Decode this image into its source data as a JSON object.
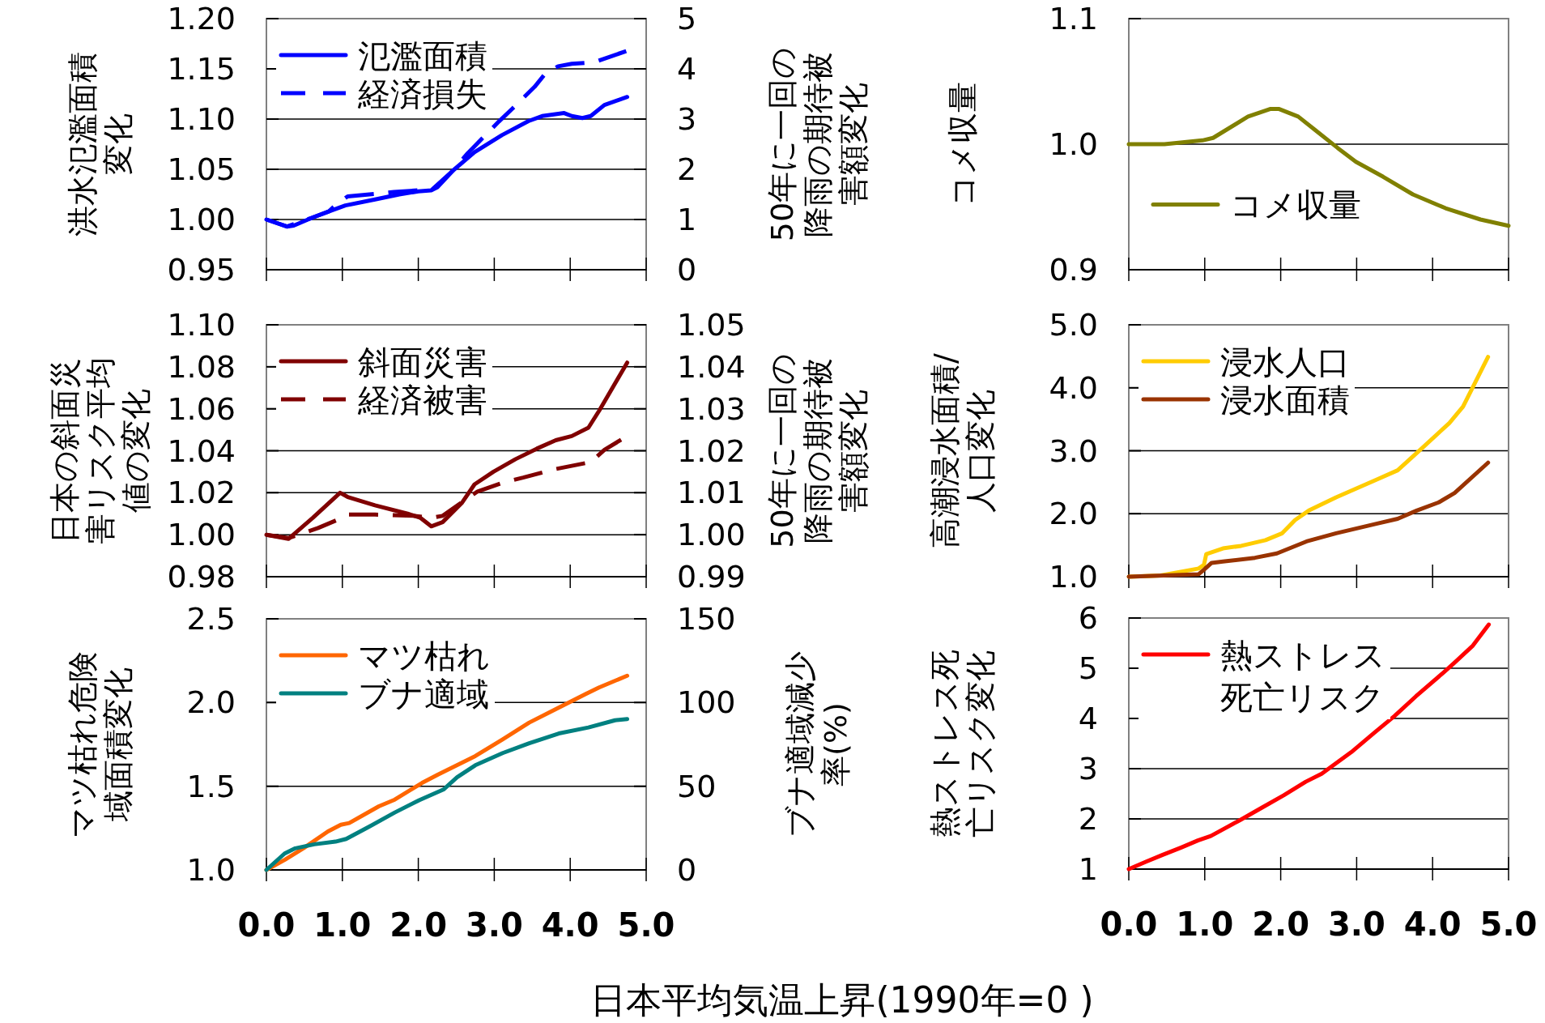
{
  "chart_data": [
    {
      "type": "line",
      "ylabel": "洪水氾濫面積変化",
      "y2label": "50年に一回の降雨の期待被害額変化",
      "xlim": [
        0,
        5
      ],
      "xticks": [
        0,
        1,
        2,
        3,
        4,
        5
      ],
      "ylim": [
        0.95,
        1.2
      ],
      "yticks": [
        0.95,
        {
          "value": 1,
          "label": "1.00"
        },
        1.05,
        {
          "value": 1.1,
          "label": "1.10"
        },
        1.15,
        {
          "value": 1.2,
          "label": "1.20"
        }
      ],
      "y2lim": [
        0,
        5
      ],
      "y2ticks": [
        0,
        1,
        2,
        3,
        4,
        5
      ],
      "grid": "y",
      "legend": "top left",
      "tick_labels": "y",
      "series": [
        {
          "name": "氾濫面積",
          "color": "#0000ff",
          "line_style": "solid",
          "x": [
            0,
            0.27,
            0.36,
            0.61,
            0.82,
            1.04,
            1.43,
            1.75,
            2.0,
            2.17,
            2.25,
            2.46,
            2.74,
            3.1,
            3.45,
            3.63,
            3.92,
            4.02,
            4.16,
            4.27,
            4.45,
            4.75
          ],
          "values": [
            1.0,
            0.993,
            0.994,
            1.002,
            1.008,
            1.014,
            1.02,
            1.025,
            1.028,
            1.029,
            1.032,
            1.049,
            1.067,
            1.084,
            1.098,
            1.103,
            1.106,
            1.103,
            1.101,
            1.103,
            1.114,
            1.122
          ]
        },
        {
          "name": "経済損失",
          "color": "#0000ff",
          "line_style": "dashed",
          "axis": "y2",
          "x": [
            0,
            0.27,
            0.61,
            0.82,
            0.93,
            1.07,
            1.43,
            1.68,
            2.0,
            2.17,
            2.46,
            2.65,
            3.06,
            3.24,
            3.53,
            3.68,
            3.84,
            4.02,
            4.31,
            4.75
          ],
          "values": [
            1.0,
            0.86,
            1.04,
            1.16,
            1.31,
            1.46,
            1.51,
            1.55,
            1.58,
            1.58,
            1.98,
            2.32,
            2.95,
            3.21,
            3.64,
            3.92,
            4.05,
            4.1,
            4.13,
            4.36
          ]
        }
      ]
    },
    {
      "type": "line",
      "ylabel": "コメ収量",
      "xlim": [
        0,
        5
      ],
      "xticks": [
        0,
        1,
        2,
        3,
        4,
        5
      ],
      "ylim": [
        0.9,
        1.1
      ],
      "yticks": [
        0.9,
        {
          "value": 1,
          "label": "1.0"
        },
        1.1
      ],
      "grid": "y",
      "legend": "bottom left",
      "tick_labels": "y",
      "series": [
        {
          "name": "コメ収量",
          "color": "#808000",
          "line_style": "solid",
          "x": [
            0,
            0.47,
            0.97,
            1.11,
            1.57,
            1.86,
            1.98,
            2.23,
            2.46,
            2.75,
            2.99,
            3.35,
            3.74,
            4.17,
            4.63,
            5.0
          ],
          "values": [
            1.0,
            1.0,
            1.003,
            1.005,
            1.022,
            1.028,
            1.028,
            1.022,
            1.011,
            0.997,
            0.986,
            0.974,
            0.96,
            0.949,
            0.94,
            0.935
          ]
        }
      ]
    },
    {
      "type": "line",
      "ylabel": "日本の斜面災害リスク平均値の変化",
      "y2label": "50年に一回の降雨の期待被害額変化",
      "xlim": [
        0,
        5
      ],
      "xticks": [
        0,
        1,
        2,
        3,
        4,
        5
      ],
      "ylim": [
        0.98,
        1.1
      ],
      "yticks": [
        0.98,
        {
          "value": 1,
          "label": "1.00"
        },
        1.02,
        1.04,
        1.06,
        1.08,
        {
          "value": 1.1,
          "label": "1.10"
        }
      ],
      "y2lim": [
        0.99,
        1.05
      ],
      "y2ticks": [
        0.99,
        {
          "value": 1,
          "label": "1.00"
        },
        1.01,
        1.02,
        1.03,
        1.04,
        1.05
      ],
      "grid": "y",
      "legend": "top left",
      "tick_labels": "y",
      "series": [
        {
          "name": "斜面災害",
          "color": "#800000",
          "line_style": "solid",
          "x": [
            0,
            0.29,
            0.61,
            0.97,
            1.07,
            1.43,
            1.86,
            2.03,
            2.17,
            2.32,
            2.57,
            2.74,
            2.99,
            3.28,
            3.56,
            3.81,
            4.02,
            4.24,
            4.38,
            4.75
          ],
          "values": [
            1.0,
            0.998,
            1.008,
            1.02,
            1.018,
            1.014,
            1.01,
            1.008,
            1.004,
            1.006,
            1.015,
            1.024,
            1.03,
            1.036,
            1.041,
            1.045,
            1.047,
            1.051,
            1.059,
            1.082
          ]
        },
        {
          "name": "経済被害",
          "color": "#800000",
          "line_style": "dashed",
          "axis": "y2",
          "x": [
            0,
            0.29,
            0.68,
            0.97,
            1.07,
            1.43,
            1.93,
            2.17,
            2.32,
            2.57,
            2.78,
            3.13,
            3.38,
            3.77,
            4.02,
            4.27,
            4.45,
            4.73
          ],
          "values": [
            1.0,
            0.9992,
            1.0016,
            1.0038,
            1.0048,
            1.0048,
            1.0045,
            1.004,
            1.0045,
            1.0077,
            1.0103,
            1.0125,
            1.0136,
            1.0155,
            1.0164,
            1.0173,
            1.0202,
            1.0233
          ]
        }
      ]
    },
    {
      "type": "line",
      "ylabel": "高潮浸水面積/人口変化",
      "xlim": [
        0,
        5
      ],
      "xticks": [
        0,
        1,
        2,
        3,
        4,
        5
      ],
      "ylim": [
        1,
        5
      ],
      "yticks": [
        {
          "value": 1,
          "label": "1.0"
        },
        {
          "value": 2,
          "label": "2.0"
        },
        {
          "value": 3,
          "label": "3.0"
        },
        {
          "value": 4,
          "label": "4.0"
        },
        {
          "value": 5,
          "label": "5.0"
        }
      ],
      "grid": "y",
      "legend": "top left",
      "tick_labels": "y",
      "series": [
        {
          "name": "浸水人口",
          "color": "#ffcc00",
          "line_style": "solid",
          "x": [
            0,
            0.42,
            0.92,
            0.99,
            1.02,
            1.24,
            1.48,
            1.8,
            2.02,
            2.19,
            2.37,
            2.73,
            3.26,
            3.54,
            3.86,
            4.22,
            4.4,
            4.73
          ],
          "values": [
            1.0,
            1.02,
            1.13,
            1.19,
            1.36,
            1.45,
            1.49,
            1.58,
            1.69,
            1.9,
            2.05,
            2.26,
            2.54,
            2.69,
            3.04,
            3.44,
            3.7,
            4.49
          ]
        },
        {
          "name": "浸水面積",
          "color": "#993300",
          "line_style": "solid",
          "x": [
            0,
            0.92,
            0.99,
            1.09,
            1.24,
            1.66,
            1.95,
            2.34,
            2.73,
            3.26,
            3.54,
            3.79,
            4.08,
            4.29,
            4.73
          ],
          "values": [
            1.0,
            1.04,
            1.11,
            1.22,
            1.24,
            1.3,
            1.37,
            1.56,
            1.69,
            1.84,
            1.92,
            2.05,
            2.18,
            2.33,
            2.81
          ]
        }
      ]
    },
    {
      "type": "line",
      "ylabel": "マツ枯れ危険域面積変化",
      "y2label": "ブナ適域減少率(%)",
      "xlim": [
        0,
        5
      ],
      "xticks": [
        {
          "value": 0,
          "label": "0.0"
        },
        {
          "value": 1,
          "label": "1.0"
        },
        {
          "value": 2,
          "label": "2.0"
        },
        {
          "value": 3,
          "label": "3.0"
        },
        {
          "value": 4,
          "label": "4.0"
        },
        {
          "value": 5,
          "label": "5.0"
        }
      ],
      "ylim": [
        1,
        2.5
      ],
      "yticks": [
        {
          "value": 1,
          "label": "1.0"
        },
        1.5,
        {
          "value": 2,
          "label": "2.0"
        },
        2.5
      ],
      "y2lim": [
        0,
        150
      ],
      "y2ticks": [
        0,
        50,
        100,
        150
      ],
      "grid": "y",
      "legend": "top left",
      "series": [
        {
          "name": "マツ枯れ",
          "color": "#ff6600",
          "line_style": "solid",
          "x": [
            0,
            0.24,
            0.49,
            0.81,
            0.98,
            1.09,
            1.48,
            1.69,
            2.05,
            2.26,
            2.75,
            3.11,
            3.46,
            3.81,
            4.2,
            4.38,
            4.75
          ],
          "values": [
            1.0,
            1.06,
            1.13,
            1.23,
            1.27,
            1.28,
            1.38,
            1.42,
            1.52,
            1.57,
            1.68,
            1.78,
            1.88,
            1.96,
            2.05,
            2.09,
            2.16
          ]
        },
        {
          "name": "ブナ適域",
          "color": "#008080",
          "line_style": "solid",
          "axis": "y2",
          "x": [
            0,
            0.24,
            0.38,
            0.63,
            0.91,
            1.05,
            1.34,
            1.69,
            2.01,
            2.33,
            2.51,
            2.75,
            3.11,
            3.46,
            3.85,
            4.24,
            4.59,
            4.75
          ],
          "values": [
            0,
            9.8,
            12.9,
            15.3,
            16.9,
            18.5,
            25.5,
            34.3,
            41.6,
            48,
            55.3,
            62.5,
            69.8,
            75.7,
            81.5,
            85.1,
            89.4,
            90.1
          ]
        }
      ]
    },
    {
      "type": "line",
      "ylabel": "熱ストレス死亡リスク変化",
      "xlim": [
        0,
        5
      ],
      "xticks": [
        {
          "value": 0,
          "label": "0.0"
        },
        {
          "value": 1,
          "label": "1.0"
        },
        {
          "value": 2,
          "label": "2.0"
        },
        {
          "value": 3,
          "label": "3.0"
        },
        {
          "value": 4,
          "label": "4.0"
        },
        {
          "value": 5,
          "label": "5.0"
        }
      ],
      "ylim": [
        1,
        6
      ],
      "yticks": [
        1,
        2,
        3,
        4,
        5,
        6
      ],
      "grid": "y",
      "legend": "top left",
      "annotations": [
        "日本平均気温上昇(1990年=0 )"
      ],
      "series": [
        {
          "name": "熱ストレス死亡リスク",
          "color": "#ff0000",
          "line_style": "solid",
          "x": [
            0,
            0.23,
            0.44,
            0.69,
            0.91,
            1.08,
            1.47,
            1.76,
            2.04,
            2.33,
            2.54,
            2.93,
            3.22,
            3.5,
            3.78,
            4.14,
            4.28,
            4.53,
            4.74
          ],
          "values": [
            1.0,
            1.15,
            1.28,
            1.43,
            1.57,
            1.66,
            1.98,
            2.23,
            2.47,
            2.74,
            2.9,
            3.33,
            3.7,
            4.05,
            4.44,
            4.91,
            5.1,
            5.45,
            5.87
          ]
        }
      ]
    }
  ]
}
